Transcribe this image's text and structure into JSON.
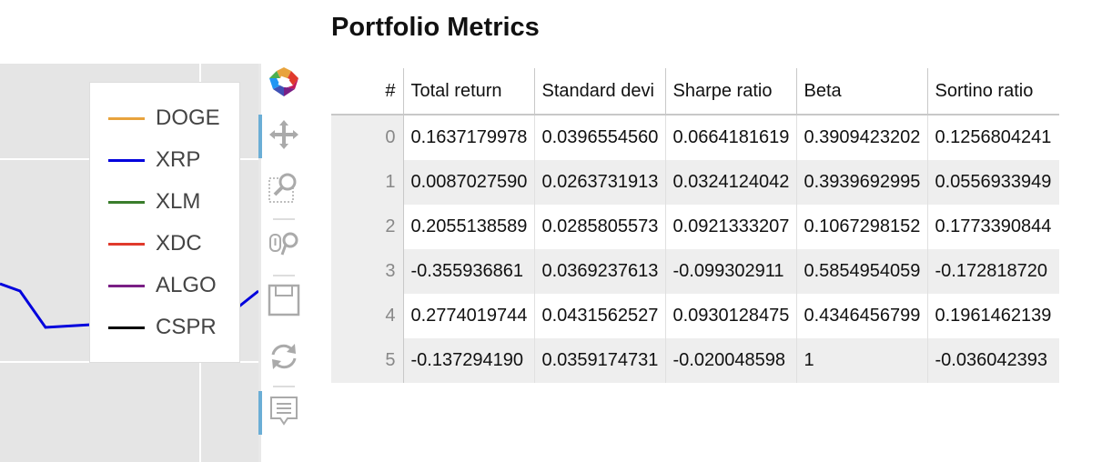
{
  "panel": {
    "title": "Portfolio Metrics"
  },
  "legend": {
    "items": [
      {
        "label": "DOGE",
        "color": "#e8a33d"
      },
      {
        "label": "XRP",
        "color": "#0000dd"
      },
      {
        "label": "XLM",
        "color": "#3a7d2c"
      },
      {
        "label": "XDC",
        "color": "#e03a2c"
      },
      {
        "label": "ALGO",
        "color": "#7a1f85"
      },
      {
        "label": "CSPR",
        "color": "#000000"
      }
    ]
  },
  "toolbar": {
    "tools": [
      {
        "name": "logo-icon",
        "active": false
      },
      {
        "name": "pan-icon",
        "active": true
      },
      {
        "name": "box-zoom-icon",
        "active": false
      },
      {
        "name": "wheel-zoom-icon",
        "active": false
      },
      {
        "name": "save-icon",
        "active": false
      },
      {
        "name": "reset-icon",
        "active": false
      },
      {
        "name": "hover-tooltip-icon",
        "active": true
      }
    ]
  },
  "table": {
    "columns": [
      "#",
      "Total return",
      "Standard devi",
      "Sharpe ratio",
      "Beta",
      "Sortino ratio"
    ],
    "rows": [
      [
        "0",
        "0.1637179978",
        "0.0396554560",
        "0.0664181619",
        "0.3909423202",
        "0.1256804241"
      ],
      [
        "1",
        "0.0087027590",
        "0.0263731913",
        "0.0324124042",
        "0.3939692995",
        "0.0556933949"
      ],
      [
        "2",
        "0.2055138589",
        "0.0285805573",
        "0.0921333207",
        "0.1067298152",
        "0.1773390844"
      ],
      [
        "3",
        "-0.355936861",
        "0.0369237613",
        "-0.099302911",
        "0.5854954059",
        "-0.172818720"
      ],
      [
        "4",
        "0.2774019744",
        "0.0431562527",
        "0.0930128475",
        "0.4346456799",
        "0.1961462139"
      ],
      [
        "5",
        "-0.137294190",
        "0.0359174731",
        "-0.020048598",
        "1",
        "-0.036042393"
      ]
    ]
  }
}
